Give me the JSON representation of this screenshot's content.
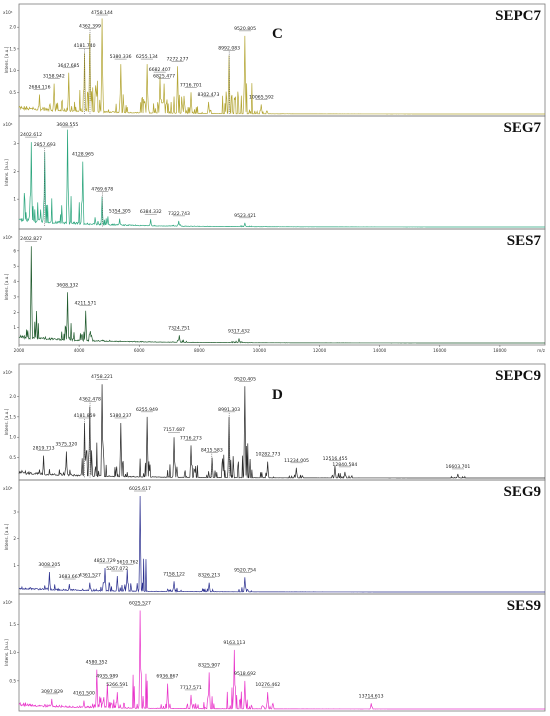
{
  "figure_letters": [
    "C",
    "D"
  ],
  "chart_data": [
    {
      "type": "line",
      "name": "SEPC7",
      "color": "#b3a533",
      "ylabel": "Intens. [a.u.]",
      "y_exponent": "x10⁴",
      "yticks": [
        "0.5",
        "1.0",
        "1.5",
        "2.0"
      ],
      "ylim": [
        0,
        2.35
      ],
      "xlim": [
        2000,
        19500
      ],
      "baseline": 0.1,
      "noise": 0.12,
      "peaks": [
        {
          "mz": 2684.116,
          "y": 0.45,
          "label": "2684.116",
          "dashed": false
        },
        {
          "mz": 3158.942,
          "y": 0.7,
          "label": "3158.942",
          "dashed": false
        },
        {
          "mz": 3647.685,
          "y": 0.95,
          "label": "3647.685",
          "dashed": false
        },
        {
          "mz": 4181.74,
          "y": 1.4,
          "label": "4181.740",
          "dashed": true
        },
        {
          "mz": 4362.399,
          "y": 1.85,
          "label": "4362.399",
          "dashed": true
        },
        {
          "mz": 4758.144,
          "y": 2.2,
          "label": "4758.144",
          "dashed": false
        },
        {
          "mz": 5380.336,
          "y": 1.15,
          "label": "5380.336",
          "dashed": false
        },
        {
          "mz": 6255.134,
          "y": 1.15,
          "label": "6255.134",
          "dashed": false
        },
        {
          "mz": 6682.407,
          "y": 0.85,
          "label": "6682.407",
          "dashed": false
        },
        {
          "mz": 6825.477,
          "y": 0.7,
          "label": "6825.477",
          "dashed": false
        },
        {
          "mz": 7272.277,
          "y": 1.1,
          "label": "7272.277",
          "dashed": false
        },
        {
          "mz": 7716.701,
          "y": 0.5,
          "label": "7716.701",
          "dashed": false
        },
        {
          "mz": 8302.473,
          "y": 0.28,
          "label": "8302.473",
          "dashed": false
        },
        {
          "mz": 8992.083,
          "y": 1.35,
          "label": "8992.083",
          "dashed": true
        },
        {
          "mz": 9520.805,
          "y": 1.8,
          "label": "9520.805",
          "dashed": false
        },
        {
          "mz": 10065.592,
          "y": 0.22,
          "label": "10065.592",
          "dashed": false
        }
      ]
    },
    {
      "type": "line",
      "name": "SEG7",
      "color": "#2aa57c",
      "ylabel": "Intens. [a.u.]",
      "y_exponent": "x10⁴",
      "yticks": [
        "1",
        "2",
        "3"
      ],
      "ylim": [
        0,
        3.7
      ],
      "xlim": [
        2000,
        19500
      ],
      "baseline": 0.2,
      "noise": 0.2,
      "peaks": [
        {
          "mz": 2402.612,
          "y": 3.05,
          "label": "2402.612",
          "dashed": false
        },
        {
          "mz": 2857.693,
          "y": 2.7,
          "label": "2857.693",
          "dashed": true
        },
        {
          "mz": 3608.555,
          "y": 3.5,
          "label": "3608.555",
          "dashed": false
        },
        {
          "mz": 4128.965,
          "y": 2.35,
          "label": "4128.965",
          "dashed": false
        },
        {
          "mz": 4769.678,
          "y": 1.1,
          "label": "4769.678",
          "dashed": true
        },
        {
          "mz": 5354.305,
          "y": 0.3,
          "label": "5354.305",
          "dashed": false
        },
        {
          "mz": 6384.332,
          "y": 0.28,
          "label": "6384.332",
          "dashed": false
        },
        {
          "mz": 7322.743,
          "y": 0.22,
          "label": "7322.743",
          "dashed": false
        },
        {
          "mz": 9523.421,
          "y": 0.15,
          "label": "9523.421",
          "dashed": false
        }
      ]
    },
    {
      "type": "line",
      "name": "SES7",
      "color": "#1f5a2c",
      "ylabel": "Intens. [a.u.]",
      "y_exponent": "x10⁴",
      "yticks": [
        "1",
        "2",
        "3",
        "4",
        "5",
        "6"
      ],
      "ylim": [
        0,
        6.9
      ],
      "xlim": [
        2000,
        19500
      ],
      "xticks": [
        2000,
        4000,
        6000,
        8000,
        10000,
        12000,
        14000,
        16000,
        18000
      ],
      "xunit": "m/z",
      "baseline": 0.3,
      "noise": 0.3,
      "peaks": [
        {
          "mz": 2402.827,
          "y": 6.3,
          "label": "2402.827",
          "dashed": false
        },
        {
          "mz": 3608.332,
          "y": 3.3,
          "label": "3608.332",
          "dashed": false
        },
        {
          "mz": 4211.571,
          "y": 2.1,
          "label": "4211.571",
          "dashed": false
        },
        {
          "mz": 7324.751,
          "y": 0.5,
          "label": "7324.751",
          "dashed": false
        },
        {
          "mz": 9317.432,
          "y": 0.3,
          "label": "9317.432",
          "dashed": false
        }
      ]
    },
    {
      "type": "line",
      "name": "SEPC9",
      "color": "#2b2b2b",
      "ylabel": "Intens. [a.u.]",
      "y_exponent": "x10⁴",
      "yticks": [
        "0.5",
        "1.0",
        "1.5",
        "2.0"
      ],
      "ylim": [
        0,
        2.6
      ],
      "xlim": [
        2000,
        19500
      ],
      "baseline": 0.1,
      "noise": 0.12,
      "peaks": [
        {
          "mz": 2819.713,
          "y": 0.55,
          "label": "2819.713",
          "dashed": false
        },
        {
          "mz": 3575.32,
          "y": 0.65,
          "label": "3575.320",
          "dashed": false
        },
        {
          "mz": 4181.859,
          "y": 1.35,
          "label": "4181.859",
          "dashed": true
        },
        {
          "mz": 4362.478,
          "y": 1.75,
          "label": "4362.478",
          "dashed": true
        },
        {
          "mz": 4758.221,
          "y": 2.3,
          "label": "4758.221",
          "dashed": false
        },
        {
          "mz": 5380.237,
          "y": 1.35,
          "label": "5380.237",
          "dashed": false
        },
        {
          "mz": 6255.949,
          "y": 1.5,
          "label": "6255.949",
          "dashed": false
        },
        {
          "mz": 7157.687,
          "y": 1.0,
          "label": "7157.687",
          "dashed": false
        },
        {
          "mz": 7716.273,
          "y": 0.8,
          "label": "7716.273",
          "dashed": false
        },
        {
          "mz": 8415.583,
          "y": 0.5,
          "label": "8415.583",
          "dashed": true
        },
        {
          "mz": 8991.303,
          "y": 1.5,
          "label": "8991.303",
          "dashed": true
        },
        {
          "mz": 9520.405,
          "y": 2.25,
          "label": "9520.405",
          "dashed": false
        },
        {
          "mz": 10282.773,
          "y": 0.4,
          "label": "10282.773",
          "dashed": false
        },
        {
          "mz": 11234.005,
          "y": 0.25,
          "label": "11234.005",
          "dashed": false
        },
        {
          "mz": 12516.455,
          "y": 0.3,
          "label": "12516.455",
          "dashed": false
        },
        {
          "mz": 12840.584,
          "y": 0.15,
          "label": "12840.584",
          "dashed": false
        },
        {
          "mz": 16603.701,
          "y": 0.1,
          "label": "16603.701",
          "dashed": false
        }
      ]
    },
    {
      "type": "line",
      "name": "SEG9",
      "color": "#2a2e8e",
      "ylabel": "Intens. [a.u.]",
      "y_exponent": "x10⁴",
      "yticks": [
        "1",
        "2",
        "3"
      ],
      "ylim": [
        0,
        3.9
      ],
      "xlim": [
        2000,
        19500
      ],
      "baseline": 0.1,
      "noise": 0.12,
      "peaks": [
        {
          "mz": 3008.205,
          "y": 0.75,
          "label": "3008.205",
          "dashed": false
        },
        {
          "mz": 3683.667,
          "y": 0.3,
          "label": "3683.667",
          "dashed": false
        },
        {
          "mz": 4361.527,
          "y": 0.35,
          "label": "4361.527",
          "dashed": false
        },
        {
          "mz": 4852.729,
          "y": 0.9,
          "label": "4852.729",
          "dashed": false
        },
        {
          "mz": 5267.072,
          "y": 0.6,
          "label": "5267.072",
          "dashed": false
        },
        {
          "mz": 5610.762,
          "y": 0.85,
          "label": "5610.762",
          "dashed": false
        },
        {
          "mz": 6025.617,
          "y": 3.6,
          "label": "6025.617",
          "dashed": false
        },
        {
          "mz": 7158.122,
          "y": 0.4,
          "label": "7158.122",
          "dashed": false
        },
        {
          "mz": 8326.213,
          "y": 0.35,
          "label": "8326.213",
          "dashed": false
        },
        {
          "mz": 9520.754,
          "y": 0.55,
          "label": "9520.754",
          "dashed": false
        }
      ]
    },
    {
      "type": "line",
      "name": "SES9",
      "color": "#e832c9",
      "ylabel": "Intens. [a.u.]",
      "y_exponent": "x10⁴",
      "yticks": [
        "0.5",
        "1.0",
        "1.5"
      ],
      "ylim": [
        0,
        1.9
      ],
      "xlim": [
        2000,
        19500
      ],
      "baseline": 0.05,
      "noise": 0.08,
      "peaks": [
        {
          "mz": 3097.829,
          "y": 0.18,
          "label": "3097.829",
          "dashed": false
        },
        {
          "mz": 4161.5,
          "y": 0.15,
          "label": "4161.500",
          "dashed": false
        },
        {
          "mz": 4580.352,
          "y": 0.7,
          "label": "4580.352",
          "dashed": false
        },
        {
          "mz": 4935.989,
          "y": 0.45,
          "label": "4935.989",
          "dashed": false
        },
        {
          "mz": 5266.591,
          "y": 0.3,
          "label": "5266.591",
          "dashed": false
        },
        {
          "mz": 6025.527,
          "y": 1.75,
          "label": "6025.527",
          "dashed": false
        },
        {
          "mz": 6936.867,
          "y": 0.45,
          "label": "6936.867",
          "dashed": false
        },
        {
          "mz": 7717.571,
          "y": 0.25,
          "label": "7717.571",
          "dashed": false
        },
        {
          "mz": 8325.907,
          "y": 0.65,
          "label": "8325.907",
          "dashed": false
        },
        {
          "mz": 9163.113,
          "y": 1.05,
          "label": "9163.113",
          "dashed": false
        },
        {
          "mz": 9518.692,
          "y": 0.5,
          "label": "9518.692",
          "dashed": false
        },
        {
          "mz": 10276.462,
          "y": 0.3,
          "label": "10276.462",
          "dashed": false
        },
        {
          "mz": 13714.613,
          "y": 0.1,
          "label": "13714.613",
          "dashed": false
        }
      ]
    }
  ]
}
